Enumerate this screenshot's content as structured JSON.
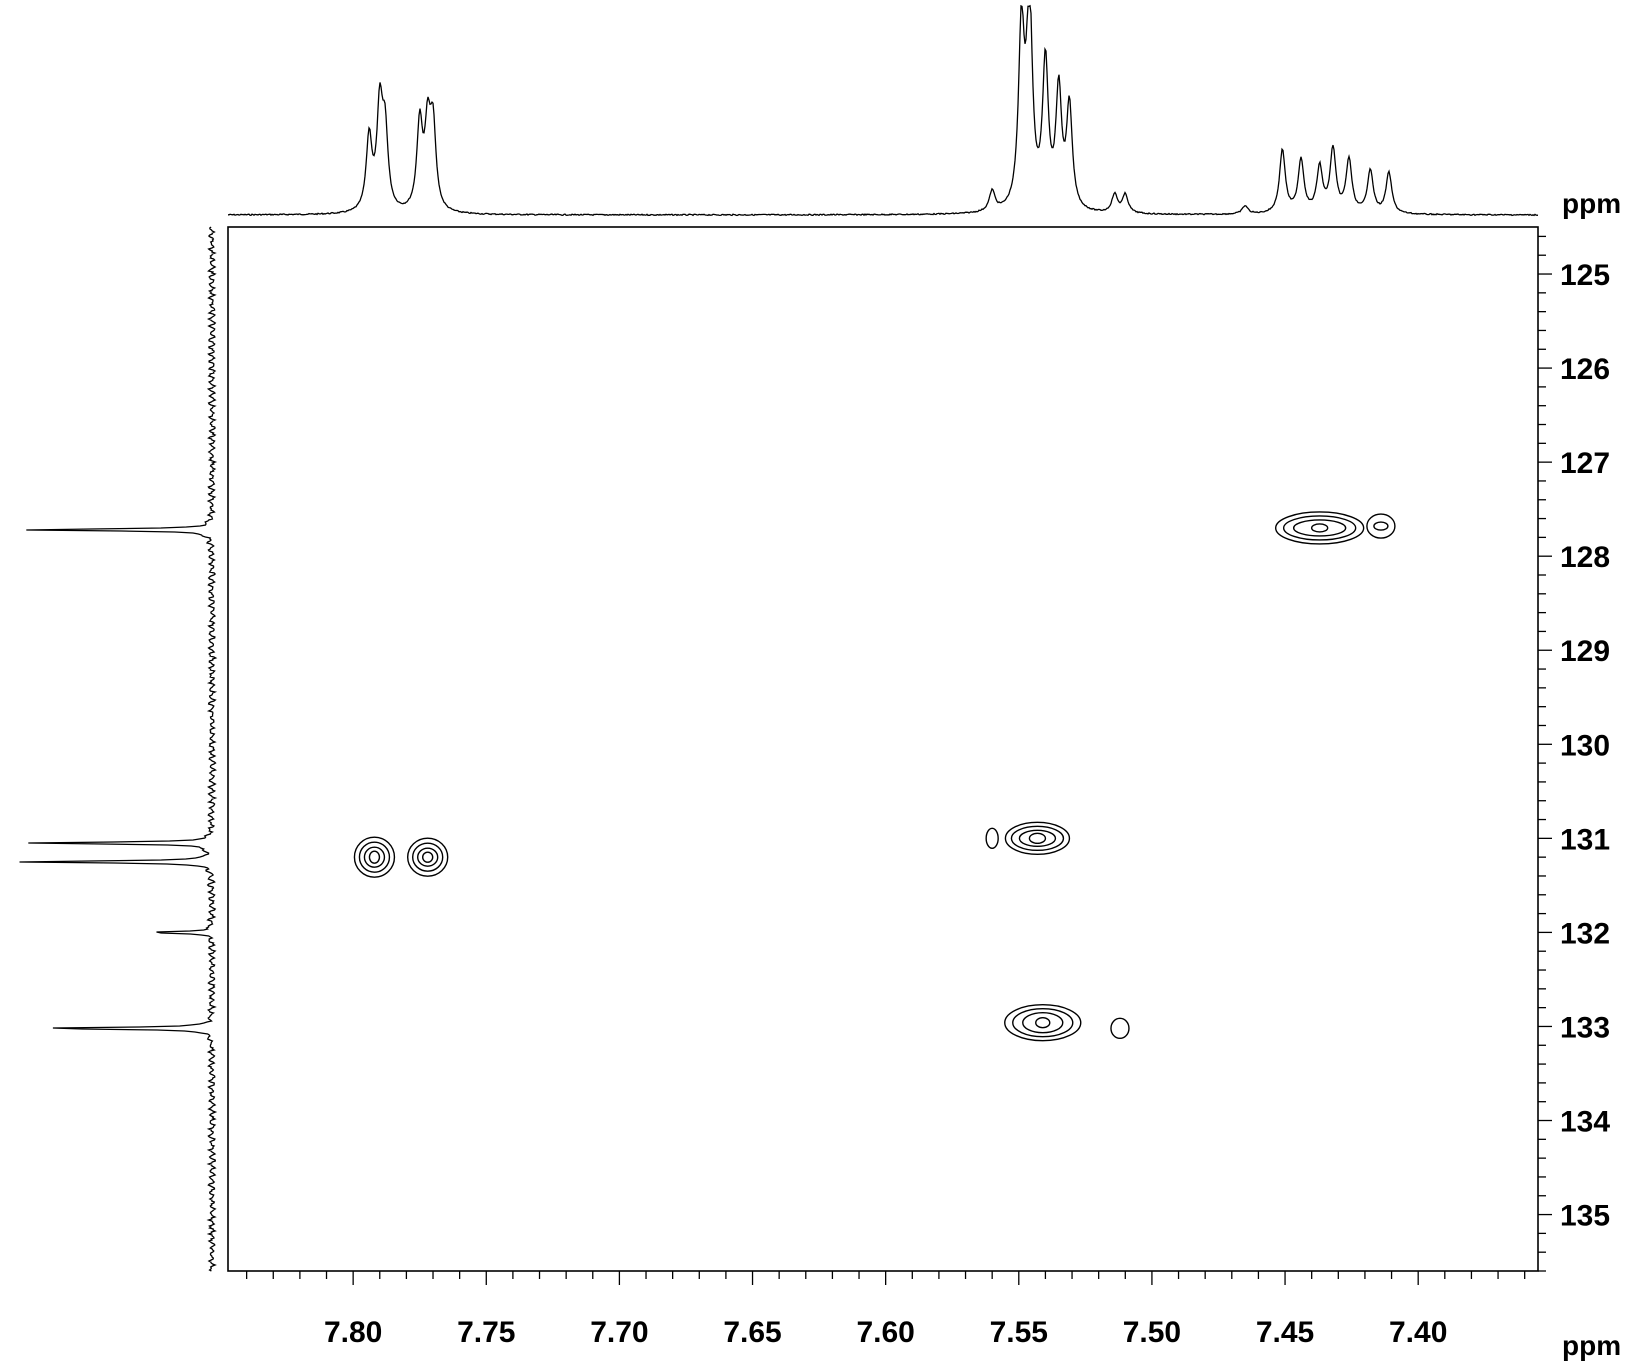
{
  "chart_data": {
    "type": "contour",
    "x_axis": {
      "unit": "ppm",
      "range": [
        7.847,
        7.355
      ],
      "ticks": [
        7.8,
        7.75,
        7.7,
        7.65,
        7.6,
        7.55,
        7.5,
        7.45,
        7.4
      ],
      "tick_labels": [
        "7.80",
        "7.75",
        "7.70",
        "7.65",
        "7.60",
        "7.55",
        "7.50",
        "7.45",
        "7.40"
      ],
      "minor_step": 0.01
    },
    "y_axis": {
      "unit": "ppm",
      "range": [
        124.5,
        135.6
      ],
      "ticks": [
        125,
        126,
        127,
        128,
        129,
        130,
        131,
        132,
        133,
        134,
        135
      ],
      "tick_labels": [
        "125",
        "126",
        "127",
        "128",
        "129",
        "130",
        "131",
        "132",
        "133",
        "134",
        "135"
      ],
      "minor_step": 0.2
    },
    "cross_peaks": [
      {
        "x": 7.792,
        "y": 131.2
      },
      {
        "x": 7.772,
        "y": 131.2
      },
      {
        "x": 7.543,
        "y": 131.0
      },
      {
        "x": 7.56,
        "y": 131.0
      },
      {
        "x": 7.541,
        "y": 132.96
      },
      {
        "x": 7.512,
        "y": 133.02
      },
      {
        "x": 7.437,
        "y": 127.7
      },
      {
        "x": 7.414,
        "y": 127.68
      }
    ],
    "f2_projection_peaks": [
      {
        "ppm": 7.794,
        "intensity": 0.36
      },
      {
        "ppm": 7.79,
        "intensity": 0.49
      },
      {
        "ppm": 7.788,
        "intensity": 0.37
      },
      {
        "ppm": 7.775,
        "intensity": 0.42
      },
      {
        "ppm": 7.772,
        "intensity": 0.38
      },
      {
        "ppm": 7.77,
        "intensity": 0.4
      },
      {
        "ppm": 7.56,
        "intensity": 0.1
      },
      {
        "ppm": 7.549,
        "intensity": 0.87
      },
      {
        "ppm": 7.546,
        "intensity": 1.0
      },
      {
        "ppm": 7.54,
        "intensity": 0.71
      },
      {
        "ppm": 7.535,
        "intensity": 0.57
      },
      {
        "ppm": 7.531,
        "intensity": 0.5
      },
      {
        "ppm": 7.514,
        "intensity": 0.09
      },
      {
        "ppm": 7.51,
        "intensity": 0.09
      },
      {
        "ppm": 7.465,
        "intensity": 0.04
      },
      {
        "ppm": 7.451,
        "intensity": 0.31
      },
      {
        "ppm": 7.444,
        "intensity": 0.26
      },
      {
        "ppm": 7.437,
        "intensity": 0.22
      },
      {
        "ppm": 7.432,
        "intensity": 0.31
      },
      {
        "ppm": 7.426,
        "intensity": 0.26
      },
      {
        "ppm": 7.418,
        "intensity": 0.21
      },
      {
        "ppm": 7.411,
        "intensity": 0.2
      }
    ],
    "f1_projection_peaks": [
      {
        "ppm": 127.72,
        "intensity": 0.94
      },
      {
        "ppm": 131.05,
        "intensity": 0.9
      },
      {
        "ppm": 131.25,
        "intensity": 0.97
      },
      {
        "ppm": 132.0,
        "intensity": 0.31
      },
      {
        "ppm": 133.02,
        "intensity": 0.88
      }
    ],
    "grid": false,
    "legend": "none"
  }
}
